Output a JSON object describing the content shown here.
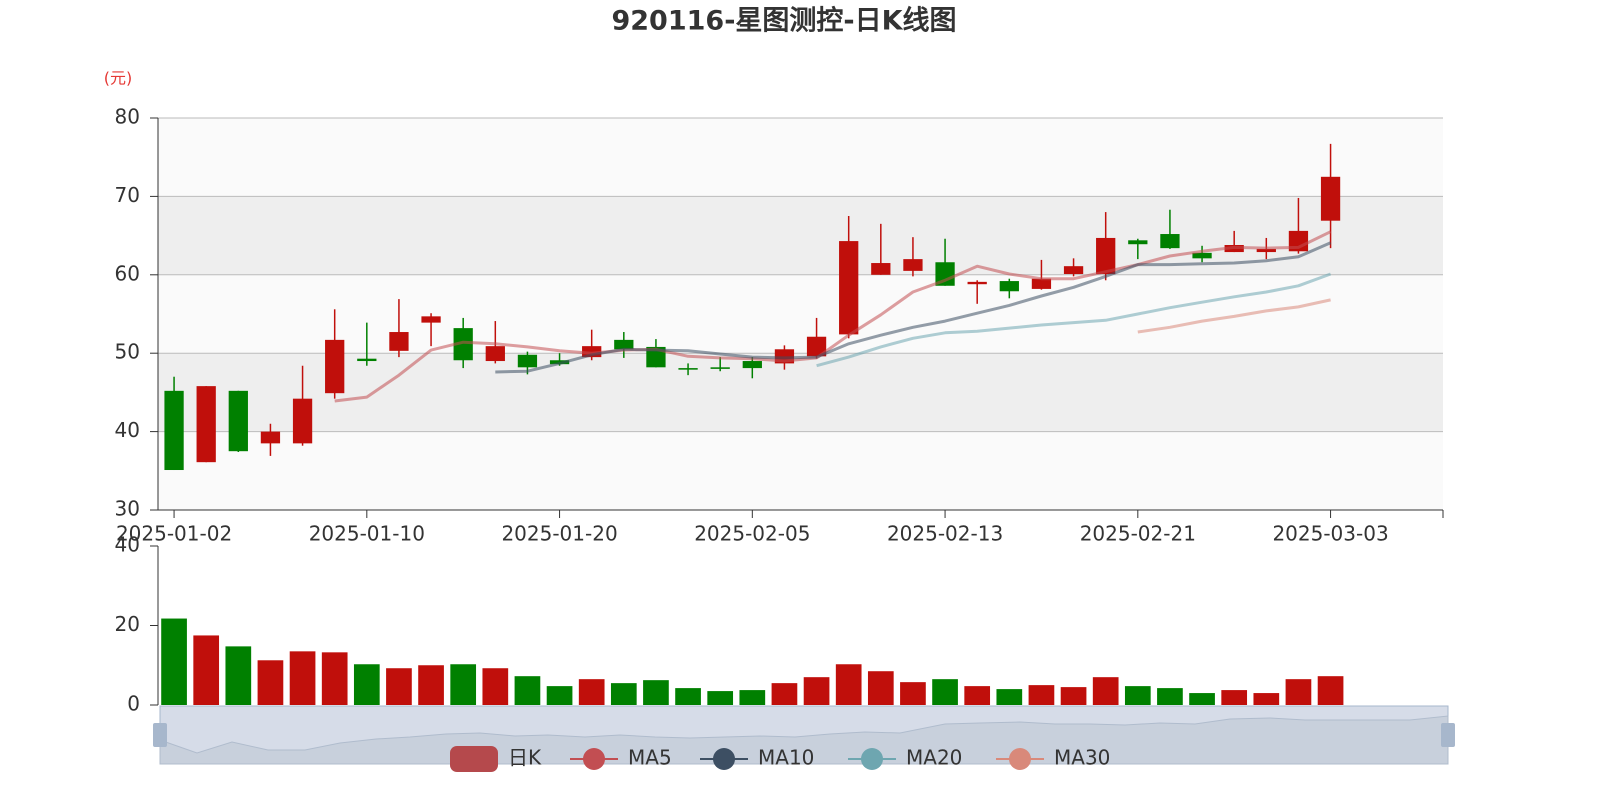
{
  "chart_data": [
    {
      "type": "candlestick",
      "title": "920116-星图测控-日K线图",
      "y_label": "(元)",
      "categories": [
        "2025-01-02",
        null,
        null,
        null,
        null,
        null,
        "2025-01-10",
        null,
        null,
        null,
        null,
        null,
        "2025-01-20",
        null,
        null,
        null,
        null,
        null,
        "2025-02-05",
        null,
        null,
        null,
        null,
        null,
        "2025-02-13",
        null,
        null,
        null,
        null,
        null,
        "2025-02-21",
        null,
        null,
        null,
        null,
        null,
        "2025-03-03",
        null,
        null,
        null
      ],
      "candles": {
        "name": "日K",
        "up_color": "#c00f0b",
        "down_color": "#008000",
        "legend_color": "#b5494c",
        "open": [
          45.2,
          36.1,
          45.2,
          38.5,
          38.5,
          44.9,
          49.3,
          50.3,
          53.9,
          53.2,
          49.0,
          49.8,
          49.1,
          49.5,
          51.7,
          50.8,
          48.1,
          48.2,
          49.0,
          48.7,
          49.6,
          52.4,
          60.0,
          60.5,
          61.6,
          58.8,
          59.2,
          58.2,
          60.1,
          60.1,
          64.4,
          65.2,
          62.8,
          62.9,
          62.9,
          63.0,
          66.9,
          null,
          null,
          null
        ],
        "close": [
          35.1,
          45.8,
          37.5,
          40.0,
          44.2,
          51.7,
          49.0,
          52.7,
          54.7,
          49.1,
          50.9,
          48.2,
          48.6,
          50.9,
          50.5,
          48.2,
          47.9,
          48.0,
          48.1,
          50.5,
          52.1,
          64.3,
          61.5,
          62.0,
          58.6,
          59.1,
          57.9,
          59.5,
          61.1,
          64.7,
          63.9,
          63.4,
          62.1,
          63.8,
          63.3,
          65.6,
          72.5,
          null,
          null,
          null
        ],
        "low": [
          35.1,
          36.1,
          37.4,
          36.9,
          38.2,
          44.2,
          48.4,
          49.5,
          50.9,
          48.1,
          48.7,
          47.3,
          48.4,
          49.1,
          49.4,
          48.2,
          47.2,
          47.7,
          46.8,
          47.9,
          49.3,
          51.9,
          60.0,
          59.8,
          58.6,
          56.3,
          57.0,
          58.1,
          59.8,
          59.3,
          62.0,
          63.3,
          61.6,
          62.9,
          62.0,
          62.7,
          63.4,
          null,
          null,
          null
        ],
        "high": [
          47.0,
          45.8,
          45.2,
          41.0,
          48.4,
          55.6,
          53.9,
          56.9,
          55.1,
          54.5,
          54.1,
          50.2,
          50.0,
          53.0,
          52.7,
          51.8,
          48.7,
          49.5,
          49.5,
          51.0,
          54.5,
          67.5,
          66.5,
          64.8,
          64.6,
          59.3,
          59.5,
          61.9,
          62.1,
          68.0,
          64.6,
          68.3,
          63.7,
          65.6,
          64.7,
          69.8,
          76.7,
          null,
          null,
          null
        ]
      },
      "series": [
        {
          "name": "MA5",
          "color": "#c24e52",
          "values": [
            null,
            null,
            null,
            null,
            null,
            43.9,
            44.4,
            47.2,
            50.4,
            51.4,
            51.2,
            50.8,
            50.3,
            50.0,
            50.4,
            50.5,
            49.6,
            49.4,
            49.3,
            49.0,
            49.4,
            52.3,
            54.9,
            57.8,
            59.3,
            61.1,
            60.1,
            59.5,
            59.5,
            60.4,
            61.3,
            62.4,
            63.0,
            63.5,
            63.4,
            63.5,
            65.5,
            null,
            null,
            null
          ]
        },
        {
          "name": "MA10",
          "color": "#3d4f63",
          "values": [
            null,
            null,
            null,
            null,
            null,
            null,
            null,
            null,
            null,
            null,
            47.6,
            47.7,
            48.7,
            49.8,
            50.5,
            50.4,
            50.3,
            49.9,
            49.5,
            49.4,
            49.5,
            51.2,
            52.3,
            53.3,
            54.1,
            55.1,
            56.1,
            57.3,
            58.4,
            59.8,
            61.3,
            61.3,
            61.4,
            61.5,
            61.8,
            62.3,
            64.1,
            null,
            null,
            null
          ]
        },
        {
          "name": "MA20",
          "color": "#6ea6b0",
          "values": [
            null,
            null,
            null,
            null,
            null,
            null,
            null,
            null,
            null,
            null,
            null,
            null,
            null,
            null,
            null,
            null,
            null,
            null,
            null,
            null,
            48.4,
            49.5,
            50.8,
            51.9,
            52.6,
            52.8,
            53.2,
            53.6,
            53.9,
            54.2,
            55.0,
            55.8,
            56.5,
            57.2,
            57.8,
            58.6,
            60.1,
            null,
            null,
            null
          ]
        },
        {
          "name": "MA30",
          "color": "#d9897a",
          "values": [
            null,
            null,
            null,
            null,
            null,
            null,
            null,
            null,
            null,
            null,
            null,
            null,
            null,
            null,
            null,
            null,
            null,
            null,
            null,
            null,
            null,
            null,
            null,
            null,
            null,
            null,
            null,
            null,
            null,
            null,
            52.7,
            53.3,
            54.1,
            54.7,
            55.4,
            55.9,
            56.8,
            null,
            null,
            null
          ]
        }
      ],
      "ylim": [
        30,
        80
      ],
      "yticks": [
        30,
        40,
        50,
        60,
        70,
        80
      ],
      "grid": true,
      "split_area": true
    },
    {
      "type": "bar",
      "values": [
        21.75,
        17.5,
        14.75,
        11.25,
        13.5,
        13.25,
        10.25,
        9.25,
        10,
        10.25,
        9.25,
        7.25,
        4.75,
        6.5,
        5.5,
        6.25,
        4.25,
        3.5,
        3.75,
        5.5,
        7,
        10.25,
        8.5,
        5.75,
        6.5,
        4.75,
        4,
        5,
        4.5,
        7,
        4.75,
        4.25,
        3,
        3.75,
        3,
        6.5,
        7.25,
        null,
        null,
        null
      ],
      "ylim": [
        0,
        40
      ],
      "yticks": [
        0,
        20,
        40
      ]
    }
  ]
}
